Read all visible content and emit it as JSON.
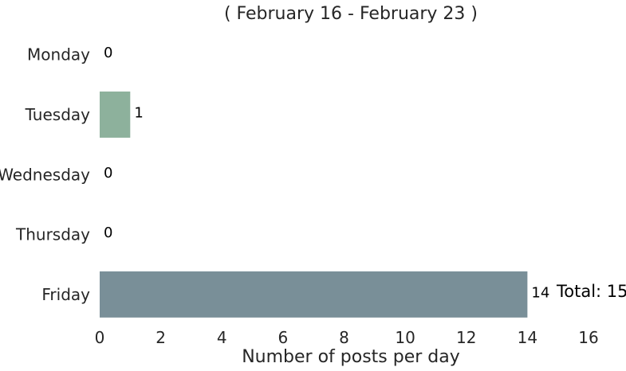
{
  "chart_data": {
    "type": "bar",
    "orientation": "horizontal",
    "title": "( February 16 - February 23 )",
    "xlabel": "Number of posts per day",
    "ylabel": "",
    "categories": [
      "Monday",
      "Tuesday",
      "Wednesday",
      "Thursday",
      "Friday"
    ],
    "values": [
      0,
      1,
      0,
      0,
      14
    ],
    "bar_colors": [
      "#8db19c",
      "#8db19c",
      "#8db19c",
      "#8db19c",
      "#798f98"
    ],
    "xlim": [
      0,
      16
    ],
    "xticks": [
      0,
      2,
      4,
      6,
      8,
      10,
      12,
      14,
      16
    ],
    "grid": false,
    "annotation": "Total: 15"
  }
}
